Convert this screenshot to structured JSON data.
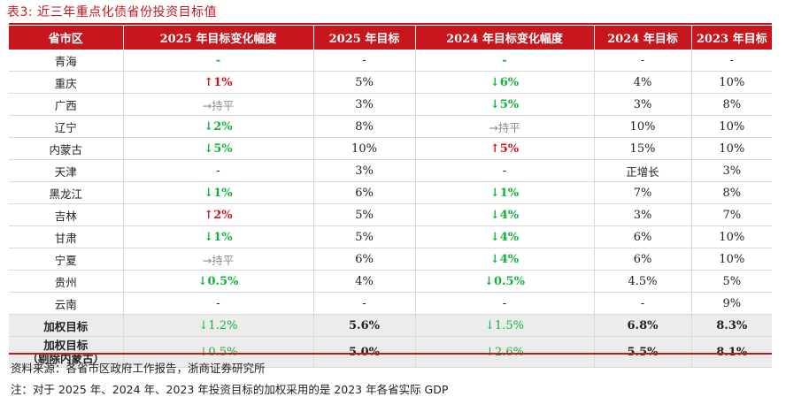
{
  "caption": "表3:  近三年重点化债省份投资目标值",
  "headers": [
    "省市区",
    "2025 年目标变化幅度",
    "2025 年目标",
    "2024 年目标变化幅度",
    "2024 年目标",
    "2023 年目标"
  ],
  "rows": [
    {
      "province": "青海",
      "chg2025": "-",
      "chg2025_type": "down",
      "t2025": "-",
      "chg2024": "-",
      "chg2024_type": "down",
      "t2024": "-",
      "t2023": "-"
    },
    {
      "province": "重庆",
      "chg2025": "↑1%",
      "chg2025_type": "up",
      "t2025": "5%",
      "chg2024": "↓6%",
      "chg2024_type": "down",
      "t2024": "4%",
      "t2023": "10%"
    },
    {
      "province": "广西",
      "chg2025": "→持平",
      "chg2025_type": "flat",
      "t2025": "3%",
      "chg2024": "↓5%",
      "chg2024_type": "down",
      "t2024": "3%",
      "t2023": "8%"
    },
    {
      "province": "辽宁",
      "chg2025": "↓2%",
      "chg2025_type": "down",
      "t2025": "8%",
      "chg2024": "→持平",
      "chg2024_type": "flat",
      "t2024": "10%",
      "t2023": "10%"
    },
    {
      "province": "内蒙古",
      "chg2025": "↓5%",
      "chg2025_type": "down",
      "t2025": "10%",
      "chg2024": "↑5%",
      "chg2024_type": "up",
      "t2024": "15%",
      "t2023": "10%"
    },
    {
      "province": "天津",
      "chg2025": "-",
      "chg2025_type": "plain",
      "t2025": "3%",
      "chg2024": "-",
      "chg2024_type": "plain",
      "t2024": "正增长",
      "t2023": "3%"
    },
    {
      "province": "黑龙江",
      "chg2025": "↓1%",
      "chg2025_type": "down",
      "t2025": "6%",
      "chg2024": "↓1%",
      "chg2024_type": "down",
      "t2024": "7%",
      "t2023": "8%"
    },
    {
      "province": "吉林",
      "chg2025": "↑2%",
      "chg2025_type": "up",
      "t2025": "5%",
      "chg2024": "↓4%",
      "chg2024_type": "down",
      "t2024": "3%",
      "t2023": "7%"
    },
    {
      "province": "甘肃",
      "chg2025": "↓1%",
      "chg2025_type": "down",
      "t2025": "5%",
      "chg2024": "↓4%",
      "chg2024_type": "down",
      "t2024": "6%",
      "t2023": "10%"
    },
    {
      "province": "宁夏",
      "chg2025": "→持平",
      "chg2025_type": "flat",
      "t2025": "6%",
      "chg2024": "↓4%",
      "chg2024_type": "down",
      "t2024": "6%",
      "t2023": "10%"
    },
    {
      "province": "贵州",
      "chg2025": "↓0.5%",
      "chg2025_type": "down",
      "t2025": "4%",
      "chg2024": "↓0.5%",
      "chg2024_type": "down",
      "t2024": "4.5%",
      "t2023": "5%"
    },
    {
      "province": "云南",
      "chg2025": "-",
      "chg2025_type": "plain",
      "t2025": "-",
      "chg2024": "-",
      "chg2024_type": "plain",
      "t2024": "-",
      "t2023": "9%"
    }
  ],
  "weighted": {
    "province": "加权目标",
    "chg2025": "↓1.2%",
    "t2025": "5.6%",
    "chg2024": "↓1.5%",
    "t2024": "6.8%",
    "t2023": "8.3%"
  },
  "weighted_ex": {
    "province_line1": "加权目标",
    "province_line2": "（剔除内蒙古）",
    "chg2025": "↓0.5%",
    "t2025": "5.0%",
    "chg2024": "↓2.6%",
    "t2024": "5.5%",
    "t2023": "8.1%"
  },
  "source": "资料来源：各省市区政府工作报告，浙商证券研究所",
  "note": "注：对于 2025 年、2024 年、2023 年投资目标的加权采用的是 2023 年各省实际 GDP",
  "colors": {
    "header_red": "#c8161d",
    "up_red": "#d0121b",
    "down_green": "#11b23c",
    "flat_grey": "#8c8c8c",
    "summary_bg": "#ececec"
  }
}
